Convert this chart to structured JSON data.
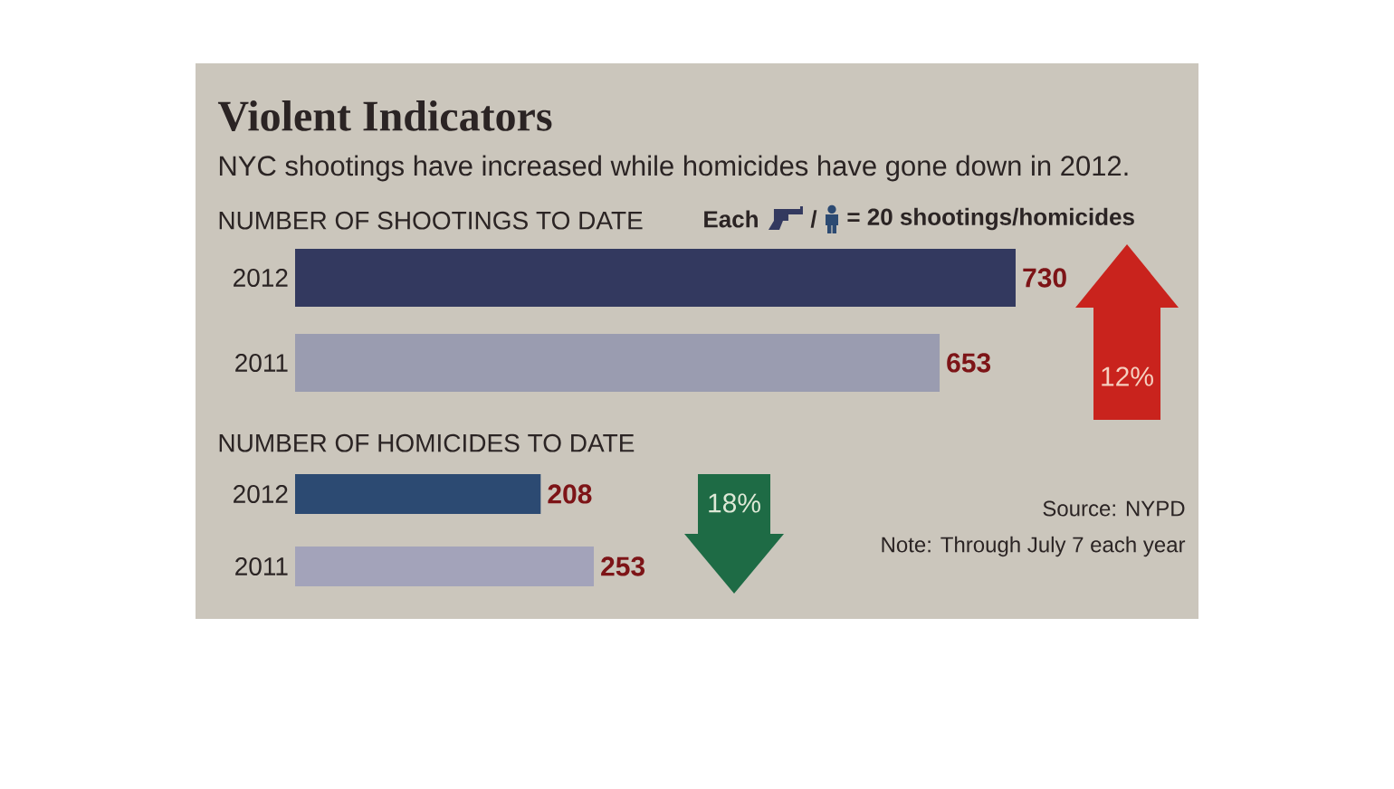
{
  "chart_data": [
    {
      "type": "bar",
      "title": "Violent Indicators",
      "subtitle": "NYC shootings have increased while homicides have gone down in 2012.",
      "xlabel": "NUMBER OF SHOOTINGS TO DATE",
      "orientation": "horizontal",
      "categories": [
        "2012",
        "2011"
      ],
      "values": [
        730,
        653
      ],
      "colors": [
        "#33395f",
        "#9a9cb0"
      ],
      "tick_labels": "y",
      "data_labels": true,
      "annotations": [
        "Each",
        "/",
        "= 20 shootings/homicides",
        "12%"
      ]
    },
    {
      "type": "bar",
      "xlabel": "NUMBER OF HOMICIDES TO DATE",
      "orientation": "horizontal",
      "categories": [
        "2012",
        "2011"
      ],
      "values": [
        208,
        253
      ],
      "colors": [
        "#2c4a72",
        "#a3a3ba"
      ],
      "tick_labels": "y",
      "data_labels": true,
      "annotations": [
        "18%",
        "Source: NYPD",
        "Note: Through July 7 each year"
      ]
    }
  ]
}
